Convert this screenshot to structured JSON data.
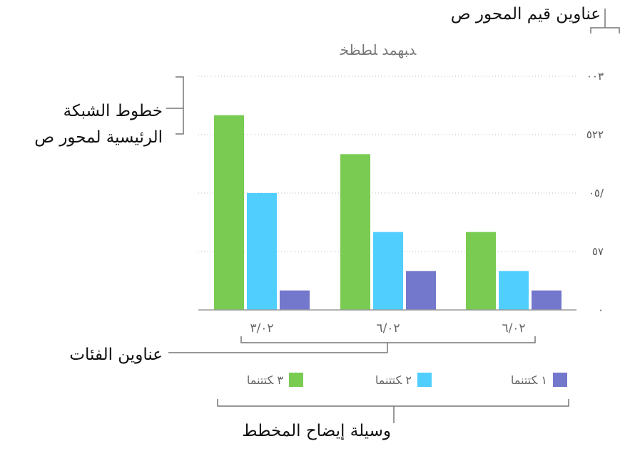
{
  "callouts": {
    "y_value_labels": "عناوين قيم المحور ص",
    "gridlines_line1": "خطوط الشبكة",
    "gridlines_line2": "الرئيسية لمحور ص",
    "category_labels": "عناوين الفئات",
    "legend": "وسيلة إيضاح المخطط"
  },
  "colors": {
    "series1": "#7acb52",
    "series2": "#50cfff",
    "series3": "#7478cc",
    "grid": "#bbbbbb",
    "axis": "#9a9a9a",
    "bracket": "#777777"
  },
  "chart_data": {
    "type": "bar",
    "title": "ﺪﺒﻬﻤﺪ ﻠﻄﻈﺨ",
    "categories": [
      "٣/٠٢",
      "٦/٠٢",
      "٦/٠٢"
    ],
    "y_tick_labels": [
      "٠",
      "٥٧",
      "٠٥/",
      "٥٢٢",
      "٠٠٣"
    ],
    "ylim": [
      0,
      300
    ],
    "grid": true,
    "legend_position": "bottom",
    "series": [
      {
        "name": "٣ ﻜﺘﺘﻨﻤﺎ",
        "values": [
          250,
          200,
          100
        ]
      },
      {
        "name": "٢ ﻜﺘﺘﻨﻤﺎ",
        "values": [
          150,
          100,
          50
        ]
      },
      {
        "name": "١ ﻜﺘﺘﻨﻤﺎ",
        "values": [
          25,
          50,
          25
        ]
      }
    ]
  }
}
